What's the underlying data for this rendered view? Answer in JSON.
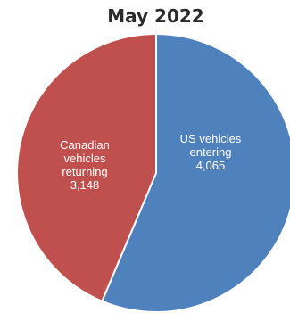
{
  "chart_data": {
    "type": "pie",
    "title": "May 2022",
    "slices": [
      {
        "label": "US vehicles entering",
        "value": 4065,
        "value_label": "4,065",
        "color": "#4f81bd"
      },
      {
        "label": "Canadian vehicles returning",
        "value": 3148,
        "value_label": "3,148",
        "color": "#c0504d"
      }
    ]
  }
}
